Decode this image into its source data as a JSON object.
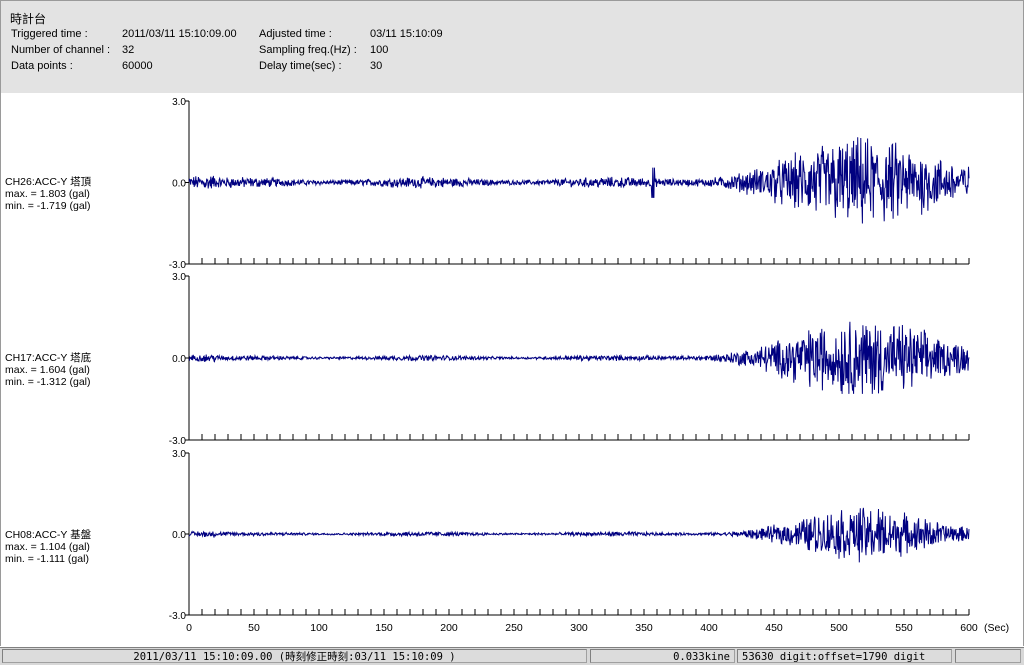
{
  "header": {
    "title": "時計台",
    "triggered_label": "Triggered time :",
    "triggered_value": "2011/03/11 15:10:09.00",
    "adjusted_label": "Adjusted time :",
    "adjusted_value": "03/11 15:10:09",
    "channels_label": "Number of channel :",
    "channels_value": "32",
    "sampling_label": "Sampling freq.(Hz) :",
    "sampling_value": "100",
    "datapoints_label": "Data points :",
    "datapoints_value": "60000",
    "delay_label": "Delay time(sec) :",
    "delay_value": "30"
  },
  "channels": [
    {
      "name": "CH26:ACC-Y 塔頂",
      "max": "max. = 1.803 (gal)",
      "min": "min. = -1.719 (gal)"
    },
    {
      "name": "CH17:ACC-Y 塔底",
      "max": "max. = 1.604 (gal)",
      "min": "min. = -1.312 (gal)"
    },
    {
      "name": "CH08:ACC-Y 基盤",
      "max": "max. = 1.104 (gal)",
      "min": "min. = -1.111 (gal)"
    }
  ],
  "status": {
    "datetime": "2011/03/11 15:10:09.00  (時刻修正時刻:03/11 15:10:09  )",
    "kine": "0.033kine",
    "digit": "53630 digit:offset=1790 digit"
  },
  "chart_data": {
    "type": "line",
    "xlabel": "(Sec)",
    "xlim": [
      0,
      600
    ],
    "x_ticks": [
      "0",
      "50",
      "100",
      "150",
      "200",
      "250",
      "300",
      "350",
      "400",
      "450",
      "500",
      "550",
      "600"
    ],
    "ylim": [
      -3.0,
      3.0
    ],
    "y_ticks": [
      "3.0",
      "0.0",
      "-3.0"
    ],
    "line_color": "#000080",
    "series": [
      {
        "name": "CH26:ACC-Y 塔頂",
        "max": 1.803,
        "min": -1.719,
        "base_amp": 0.12,
        "peak_time": 520,
        "peak_span": 70,
        "spike_time": 357
      },
      {
        "name": "CH17:ACC-Y 塔底",
        "max": 1.604,
        "min": -1.312,
        "base_amp": 0.06,
        "peak_time": 520,
        "peak_span": 70
      },
      {
        "name": "CH08:ACC-Y 基盤",
        "max": 1.104,
        "min": -1.111,
        "base_amp": 0.05,
        "peak_time": 520,
        "peak_span": 60
      }
    ]
  }
}
